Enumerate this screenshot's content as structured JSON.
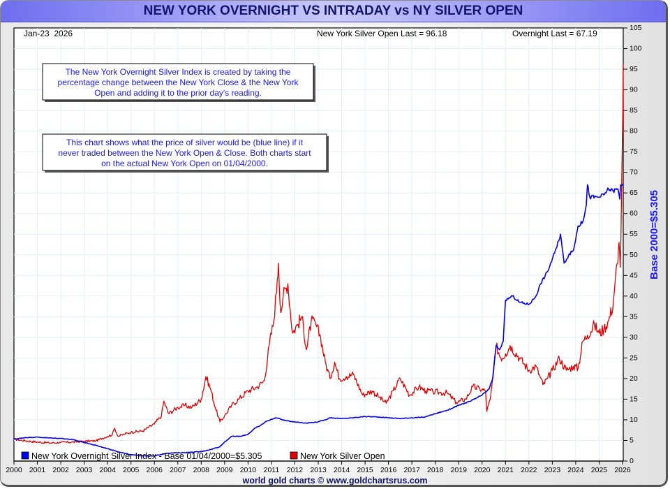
{
  "page": {
    "title": "NEW YORK OVERNIGHT VS INTRADAY vs NY SILVER OPEN",
    "footer": "world gold charts © www.goldchartsrus.com"
  },
  "colors": {
    "red_series": "#e00000",
    "blue_series": "#0000ee",
    "title_text": "#14146e",
    "annotation_text": "#1a1aff",
    "grid": "#e3eef8"
  },
  "chart_data": {
    "type": "line",
    "title": "NEW YORK OVERNIGHT VS INTRADAY vs NY SILVER OPEN",
    "date_label": "Jan-23  2026",
    "readouts": {
      "silver_open_last": "New York Silver Open Last = 96.18",
      "overnight_last": "Overnight Last = 67.19"
    },
    "ylabel_right": "Base 2000=$5.305",
    "xlim": [
      2000,
      2026.06
    ],
    "ylim": [
      0,
      105
    ],
    "grid": true,
    "x_ticks": [
      "2000",
      "2001",
      "2002",
      "2003",
      "2004",
      "2005",
      "2006",
      "2007",
      "2008",
      "2009",
      "2010",
      "2011",
      "2012",
      "2013",
      "2014",
      "2015",
      "2016",
      "2017",
      "2018",
      "2019",
      "2020",
      "2021",
      "2022",
      "2023",
      "2024",
      "2025",
      "2026"
    ],
    "y_ticks": [
      "0",
      "5",
      "10",
      "15",
      "20",
      "25",
      "30",
      "35",
      "40",
      "45",
      "50",
      "55",
      "60",
      "65",
      "70",
      "75",
      "80",
      "85",
      "90",
      "95",
      "100",
      "105"
    ],
    "annotations": [
      {
        "lines": [
          "The New York Overnight Silver Index is created by taking the",
          "percentage change between the New York Close & the New York",
          "Open and adding it to the prior day's reading."
        ]
      },
      {
        "lines": [
          "This chart shows what the price of silver would be (blue line) if it",
          "never traded between the New York Open & Close. Both charts start",
          "on the actual New York Open on 01/04/2000."
        ]
      }
    ],
    "legend_position": "bottom-left",
    "series": [
      {
        "name": "New York Silver Open",
        "color": "#e00000",
        "x": [
          2000.0,
          2000.5,
          2001.0,
          2001.5,
          2002.0,
          2002.5,
          2003.0,
          2003.5,
          2004.0,
          2004.2,
          2004.3,
          2004.45,
          2004.7,
          2005.0,
          2005.5,
          2006.0,
          2006.3,
          2006.4,
          2006.6,
          2007.0,
          2007.3,
          2007.6,
          2008.0,
          2008.2,
          2008.4,
          2008.6,
          2008.8,
          2009.0,
          2009.3,
          2009.6,
          2010.0,
          2010.4,
          2010.7,
          2010.9,
          2011.1,
          2011.25,
          2011.3,
          2011.4,
          2011.5,
          2011.7,
          2011.9,
          2012.1,
          2012.3,
          2012.5,
          2012.7,
          2012.9,
          2013.1,
          2013.3,
          2013.5,
          2013.7,
          2013.9,
          2014.2,
          2014.5,
          2014.9,
          2015.3,
          2015.6,
          2015.9,
          2016.2,
          2016.5,
          2016.9,
          2017.3,
          2017.6,
          2017.9,
          2018.2,
          2018.5,
          2018.9,
          2019.3,
          2019.6,
          2019.9,
          2020.15,
          2020.2,
          2020.35,
          2020.5,
          2020.6,
          2020.8,
          2021.0,
          2021.2,
          2021.6,
          2022.0,
          2022.3,
          2022.6,
          2022.8,
          2023.0,
          2023.3,
          2023.6,
          2023.9,
          2024.1,
          2024.3,
          2024.5,
          2024.8,
          2025.0,
          2025.2,
          2025.4,
          2025.6,
          2025.7,
          2025.8,
          2025.85,
          2025.9,
          2025.95,
          2026.0,
          2026.03
        ],
        "values": [
          5.3,
          4.9,
          4.6,
          4.4,
          4.5,
          4.6,
          4.8,
          4.9,
          6.0,
          6.4,
          8.0,
          6.0,
          6.5,
          7.0,
          7.3,
          9.0,
          11.0,
          14.5,
          11.5,
          13.0,
          13.5,
          13.0,
          15.0,
          20.5,
          17.5,
          13.0,
          9.5,
          11.0,
          13.5,
          15.0,
          17.0,
          18.0,
          19.5,
          28.0,
          34.0,
          44.0,
          48.0,
          36.0,
          40.0,
          43.0,
          31.0,
          33.0,
          35.0,
          27.0,
          34.0,
          33.0,
          30.0,
          24.0,
          20.0,
          24.0,
          20.0,
          20.5,
          21.0,
          16.0,
          17.0,
          15.5,
          14.0,
          17.0,
          20.0,
          16.0,
          18.0,
          17.0,
          16.8,
          16.6,
          16.5,
          14.2,
          15.0,
          18.0,
          17.5,
          17.0,
          12.0,
          15.0,
          22.0,
          28.0,
          25.0,
          26.0,
          28.0,
          25.0,
          22.0,
          23.0,
          18.5,
          20.0,
          22.0,
          25.0,
          22.0,
          23.0,
          22.5,
          29.0,
          30.5,
          33.0,
          31.0,
          32.0,
          34.0,
          38.0,
          45.0,
          48.0,
          53.0,
          47.0,
          62.0,
          80.0,
          96.18
        ]
      },
      {
        "name": "New York Overnight Silver Index - Base 01/04/2000=$5.305",
        "color": "#0000ee",
        "x": [
          2000.0,
          2000.5,
          2001.0,
          2001.5,
          2002.0,
          2002.5,
          2003.0,
          2003.5,
          2004.0,
          2004.5,
          2005.0,
          2005.5,
          2006.0,
          2006.5,
          2007.0,
          2007.5,
          2008.0,
          2008.4,
          2008.8,
          2009.0,
          2009.3,
          2009.7,
          2010.0,
          2010.3,
          2010.5,
          2010.8,
          2011.2,
          2011.6,
          2012.0,
          2012.5,
          2013.0,
          2013.3,
          2013.5,
          2014.0,
          2014.5,
          2015.0,
          2015.5,
          2016.0,
          2016.5,
          2017.0,
          2017.5,
          2018.0,
          2018.5,
          2019.0,
          2019.5,
          2020.0,
          2020.3,
          2020.45,
          2020.6,
          2020.75,
          2020.9,
          2021.0,
          2021.3,
          2021.6,
          2022.0,
          2022.3,
          2022.5,
          2022.8,
          2023.0,
          2023.2,
          2023.35,
          2023.5,
          2023.7,
          2023.9,
          2024.1,
          2024.3,
          2024.45,
          2024.5,
          2024.6,
          2025.0,
          2025.2,
          2025.4,
          2025.6,
          2025.8,
          2025.88,
          2025.92,
          2026.03
        ],
        "values": [
          5.3,
          5.7,
          5.8,
          5.6,
          5.5,
          5.2,
          4.5,
          3.8,
          3.0,
          2.2,
          1.5,
          1.3,
          1.2,
          1.9,
          2.0,
          2.1,
          2.3,
          2.8,
          3.5,
          4.6,
          6.0,
          6.0,
          6.5,
          8.0,
          8.5,
          9.7,
          10.5,
          9.8,
          9.5,
          9.2,
          9.5,
          10.0,
          10.5,
          10.3,
          10.5,
          10.8,
          10.7,
          10.5,
          10.3,
          10.5,
          10.6,
          11.5,
          12.3,
          13.5,
          14.5,
          16.0,
          17.5,
          20.0,
          28.0,
          27.0,
          29.0,
          39.0,
          40.0,
          38.5,
          38.0,
          40.0,
          43.0,
          46.0,
          49.0,
          52.0,
          55.0,
          48.0,
          50.0,
          51.0,
          57.0,
          58.0,
          62.0,
          67.0,
          64.0,
          64.0,
          64.5,
          66.0,
          65.5,
          66.0,
          63.5,
          67.0,
          67.19
        ]
      }
    ]
  }
}
